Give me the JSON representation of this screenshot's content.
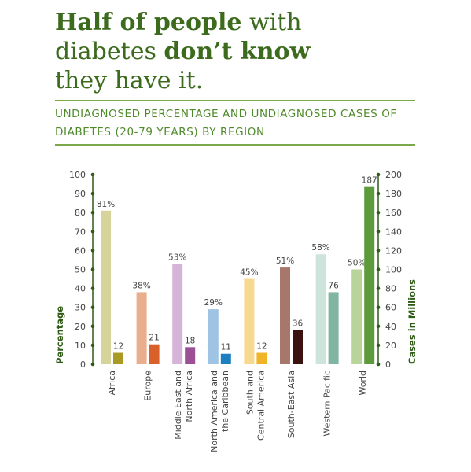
{
  "headline": {
    "line1_bold": "Half of people",
    "line1_rest": " with",
    "line2_plain": "diabetes ",
    "line2_bold": "don’t know",
    "line3": "they have it."
  },
  "subtitle": "UNDIAGNOSED PERCENTAGE AND UNDIAGNOSED CASES OF DIABETES (20-79 YEARS) BY REGION",
  "chart_data": {
    "type": "bar",
    "categories": [
      [
        "Africa"
      ],
      [
        "Europe"
      ],
      [
        "Middle East and",
        "North Africa"
      ],
      [
        "North America and",
        "the Caribbean"
      ],
      [
        "South and",
        "Central America"
      ],
      [
        "South-East Asia"
      ],
      [
        "Western Pacific"
      ],
      [
        "World"
      ]
    ],
    "series": [
      {
        "axis": "left",
        "values": [
          81,
          38,
          53,
          29,
          45,
          51,
          58,
          50
        ],
        "labels": [
          "81%",
          "38%",
          "53%",
          "29%",
          "45%",
          "51%",
          "58%",
          "50%"
        ],
        "colors": [
          "#d6d49a",
          "#e9ae8e",
          "#d6b4d9",
          "#9fc4e3",
          "#f6d88e",
          "#a8776c",
          "#cde4da",
          "#b8d49a"
        ]
      },
      {
        "axis": "right",
        "values": [
          12,
          21,
          18,
          11,
          12,
          36,
          76,
          187
        ],
        "labels": [
          "12",
          "21",
          "18",
          "11",
          "12",
          "36",
          "76",
          "187"
        ],
        "colors": [
          "#a89a23",
          "#d95f2b",
          "#9b4f94",
          "#1d7fc0",
          "#f0b428",
          "#3a1210",
          "#7fb5a1",
          "#5d9a3b"
        ]
      }
    ],
    "y_left": {
      "label": "Percentage",
      "min": 0,
      "max": 100,
      "ticks": [
        0,
        10,
        20,
        30,
        40,
        50,
        60,
        70,
        80,
        90,
        100
      ]
    },
    "y_right": {
      "label": "Cases in Millions",
      "min": 0,
      "max": 200,
      "ticks": [
        0,
        20,
        40,
        60,
        80,
        100,
        120,
        140,
        160,
        180,
        200
      ]
    },
    "colors": {
      "axis": "#2f5c16",
      "text": "#444444"
    }
  }
}
